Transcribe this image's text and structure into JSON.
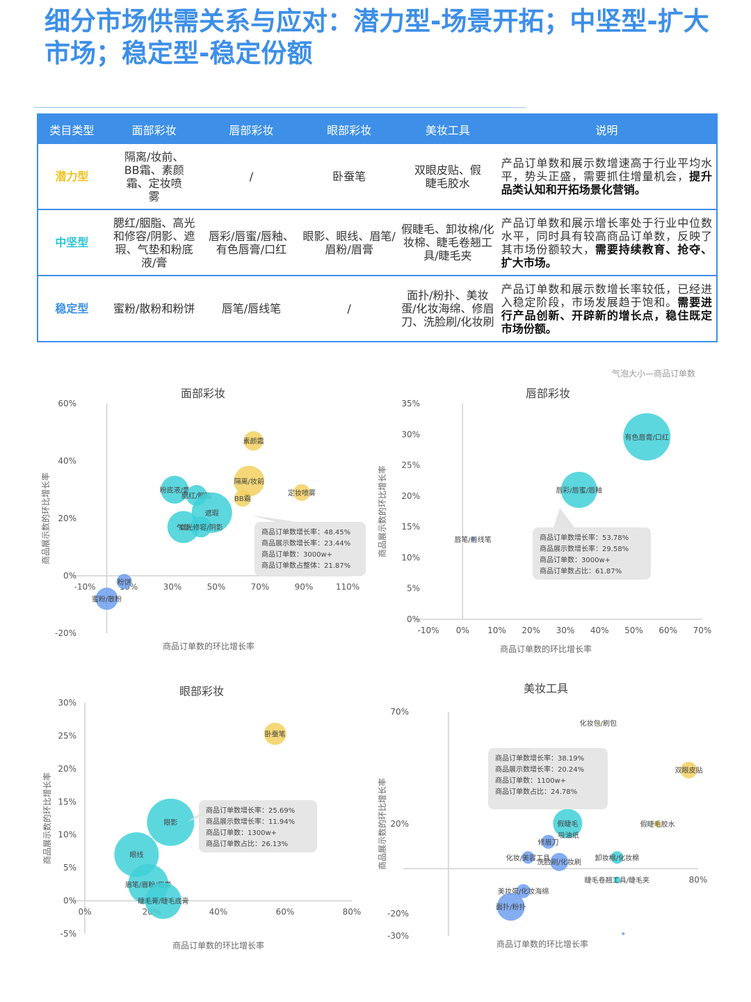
{
  "page": {
    "title": "细分市场供需关系与应对：潜力型-场景开拓；中坚型-扩大市场；稳定型-稳定份额",
    "note": "气泡大小—商品订单数"
  },
  "table": {
    "headers": [
      "类目类型",
      "面部彩妆",
      "唇部彩妆",
      "眼部彩妆",
      "美妆工具",
      "说明"
    ],
    "rows": [
      {
        "type": "潜力型",
        "color": "#f0c020",
        "cells": [
          "隔离/妆前、BB霜、素颜霜、定妆喷雾",
          "/",
          "卧蚕笔",
          "双眼皮贴、假睫毛胶水"
        ],
        "desc_plain": "产品订单数和展示数增速高于行业平均水平，势头正盛，需要抓住增量机会，",
        "desc_bold": "提升品类认知和开拓场景化营销。"
      },
      {
        "type": "中坚型",
        "color": "#2bc4d6",
        "cells": [
          "腮红/胭脂、高光和修容/阴影、遮瑕、气垫和粉底液/膏",
          "唇彩/唇蜜/唇釉、有色唇膏/口红",
          "眼影、眼线、眉笔/眉粉/眉膏",
          "假睫毛、卸妆棉/化妆棉、睫毛卷翘工具/睫毛夹"
        ],
        "desc_plain": "产品订单数和展示增长率处于行业中位数水平，同时具有较高商品订单数，反映了其市场份额较大，",
        "desc_bold": "需要持续教育、抢夺、扩大市场。"
      },
      {
        "type": "稳定型",
        "color": "#3d8fe8",
        "cells": [
          "蜜粉/散粉和粉饼",
          "唇笔/唇线笔",
          "/",
          "面扑/粉扑、美妆蛋/化妆海绵、修眉刀、洗脸刷/化妆刷"
        ],
        "desc_plain": "产品订单数和展示数增长率较低，已经进入稳定阶段，市场发展趋于饱和。",
        "desc_bold": "需要进行产品创新、开辟新的增长点，稳住既定市场份额。"
      }
    ]
  },
  "colors": {
    "potential": "#f3d060",
    "core": "#40d0d8",
    "stable": "#6f9ff0"
  },
  "chart_data": [
    {
      "type": "scatter",
      "title": "面部彩妆",
      "xlabel": "商品订单数的环比增长率",
      "ylabel": "商品展示数的环比增长率",
      "xlim": [
        -10,
        110
      ],
      "ylim": [
        -20,
        60
      ],
      "xticks": [
        "-10%",
        "10%",
        "30%",
        "50%",
        "70%",
        "90%",
        "110%"
      ],
      "yticks": [
        "-20%",
        "0%",
        "20%",
        "40%",
        "60%"
      ],
      "points": [
        {
          "name": "素颜霜",
          "x": 67,
          "y": 47,
          "size": 14,
          "group": "potential"
        },
        {
          "name": "隔离/妆前",
          "x": 65,
          "y": 33,
          "size": 22,
          "group": "potential"
        },
        {
          "name": "BB霜",
          "x": 62,
          "y": 27,
          "size": 12,
          "group": "potential"
        },
        {
          "name": "定妆喷雾",
          "x": 89,
          "y": 29,
          "size": 12,
          "group": "potential"
        },
        {
          "name": "粉底液/膏",
          "x": 31,
          "y": 30,
          "size": 20,
          "group": "core"
        },
        {
          "name": "腮红/胭脂",
          "x": 41,
          "y": 28,
          "size": 15,
          "group": "core"
        },
        {
          "name": "遮瑕",
          "x": 48,
          "y": 22,
          "size": 29,
          "group": "core"
        },
        {
          "name": "气垫",
          "x": 35,
          "y": 17,
          "size": 23,
          "group": "core"
        },
        {
          "name": "高光修容/阴影",
          "x": 43,
          "y": 17,
          "size": 15,
          "group": "core"
        },
        {
          "name": "粉饼",
          "x": 8,
          "y": -2,
          "size": 11,
          "group": "stable"
        },
        {
          "name": "蜜粉/散粉",
          "x": 0,
          "y": -8,
          "size": 16,
          "group": "stable"
        }
      ],
      "tooltip": {
        "lines": [
          "商品订单数增长率：48.45%",
          "商品展示数增长率：23.44%",
          "商品订单数：3000w+",
          "商品订单数占整体：21.87%"
        ]
      }
    },
    {
      "type": "scatter",
      "title": "唇部彩妆",
      "xlabel": "商品订单数的环比增长率",
      "ylabel": "商品展示数的环比增长率",
      "xlim": [
        -10,
        70
      ],
      "ylim": [
        0,
        35
      ],
      "xticks": [
        "-10%",
        "0%",
        "10%",
        "20%",
        "30%",
        "40%",
        "50%",
        "60%",
        "70%"
      ],
      "yticks": [
        "0%",
        "5%",
        "10%",
        "15%",
        "20%",
        "25%",
        "30%",
        "35%"
      ],
      "points": [
        {
          "name": "有色唇膏/口红",
          "x": 53.8,
          "y": 29.6,
          "size": 34,
          "group": "core"
        },
        {
          "name": "唇彩/唇蜜/唇釉",
          "x": 34,
          "y": 21,
          "size": 26,
          "group": "core"
        },
        {
          "name": "唇笔/唇线笔",
          "x": 3,
          "y": 13,
          "size": 3,
          "group": "stable"
        }
      ],
      "tooltip": {
        "lines": [
          "商品订单数增长率：53.78%",
          "商品展示数增长率：29.58%",
          "商品订单数：3000w+",
          "商品订单数占比：61.87%"
        ]
      }
    },
    {
      "type": "scatter",
      "title": "眼部彩妆",
      "xlabel": "商品订单数的环比增长率",
      "ylabel": "商品展示数的环比增长率",
      "xlim": [
        0,
        80
      ],
      "ylim": [
        -5,
        30
      ],
      "xticks": [
        "0%",
        "20%",
        "40%",
        "60%",
        "80%"
      ],
      "yticks": [
        "-5%",
        "0%",
        "5%",
        "10%",
        "15%",
        "20%",
        "25%",
        "30%"
      ],
      "points": [
        {
          "name": "卧蚕笔",
          "x": 57,
          "y": 25.3,
          "size": 16,
          "group": "potential"
        },
        {
          "name": "眼影",
          "x": 25.7,
          "y": 11.9,
          "size": 34,
          "group": "core"
        },
        {
          "name": "眼线",
          "x": 15.5,
          "y": 7,
          "size": 32,
          "group": "core"
        },
        {
          "name": "眉笔/眉粉/眉膏",
          "x": 19,
          "y": 2.5,
          "size": 29,
          "group": "core"
        },
        {
          "name": "睫毛膏/睫毛底膏",
          "x": 23.5,
          "y": 0,
          "size": 26,
          "group": "core"
        }
      ],
      "tooltip": {
        "lines": [
          "商品订单数增长率：25.69%",
          "商品展示数增长率：11.94%",
          "商品订单数：1300w+",
          "商品订单数占比：26.13%"
        ]
      }
    },
    {
      "type": "scatter",
      "title": "美妆工具",
      "xlabel": "商品订单数的环比增长率",
      "ylabel": "商品展示数的环比增长率",
      "xlim": [
        -10,
        80
      ],
      "ylim": [
        -30,
        70
      ],
      "xticks": [
        "80%"
      ],
      "yticks": [
        "-30%",
        "-20%",
        "20%",
        "70%"
      ],
      "points": [
        {
          "name": "化妆包/刷包",
          "x": 48,
          "y": 65,
          "size": 2,
          "group": "potential"
        },
        {
          "name": "双眼皮贴",
          "x": 77,
          "y": 44,
          "size": 12,
          "group": "potential"
        },
        {
          "name": "假睫毛胶水",
          "x": 67,
          "y": 20,
          "size": 5,
          "group": "potential"
        },
        {
          "name": "假睫毛",
          "x": 38.2,
          "y": 20.2,
          "size": 21,
          "group": "core"
        },
        {
          "name": "吸油纸",
          "x": 38.5,
          "y": 15,
          "size": 3,
          "group": "core"
        },
        {
          "name": "卸妆棉/化妆棉",
          "x": 54,
          "y": 5,
          "size": 9,
          "group": "core"
        },
        {
          "name": "睫毛卷翘工具/睫毛夹",
          "x": 54,
          "y": -5,
          "size": 5,
          "group": "core"
        },
        {
          "name": "修眉刀",
          "x": 32,
          "y": 12,
          "size": 10,
          "group": "stable"
        },
        {
          "name": "化妆/美容工具",
          "x": 25.5,
          "y": 5,
          "size": 9,
          "group": "stable"
        },
        {
          "name": "洗脸刷/化妆刷",
          "x": 35.5,
          "y": 3,
          "size": 13,
          "group": "stable"
        },
        {
          "name": "美妆蛋/化妆海绵",
          "x": 24,
          "y": -10,
          "size": 10,
          "group": "stable"
        },
        {
          "name": "面扑/粉扑",
          "x": 20,
          "y": -17,
          "size": 20,
          "group": "stable"
        },
        {
          "name": "",
          "x": 56,
          "y": -29,
          "size": 2,
          "group": "stable"
        }
      ],
      "tooltip": {
        "lines": [
          "商品订单数增长率：38.19%",
          "商品展示数增长率：20.24%",
          "商品订单数：1100w+",
          "商品订单数占比：24.78%"
        ]
      }
    }
  ]
}
